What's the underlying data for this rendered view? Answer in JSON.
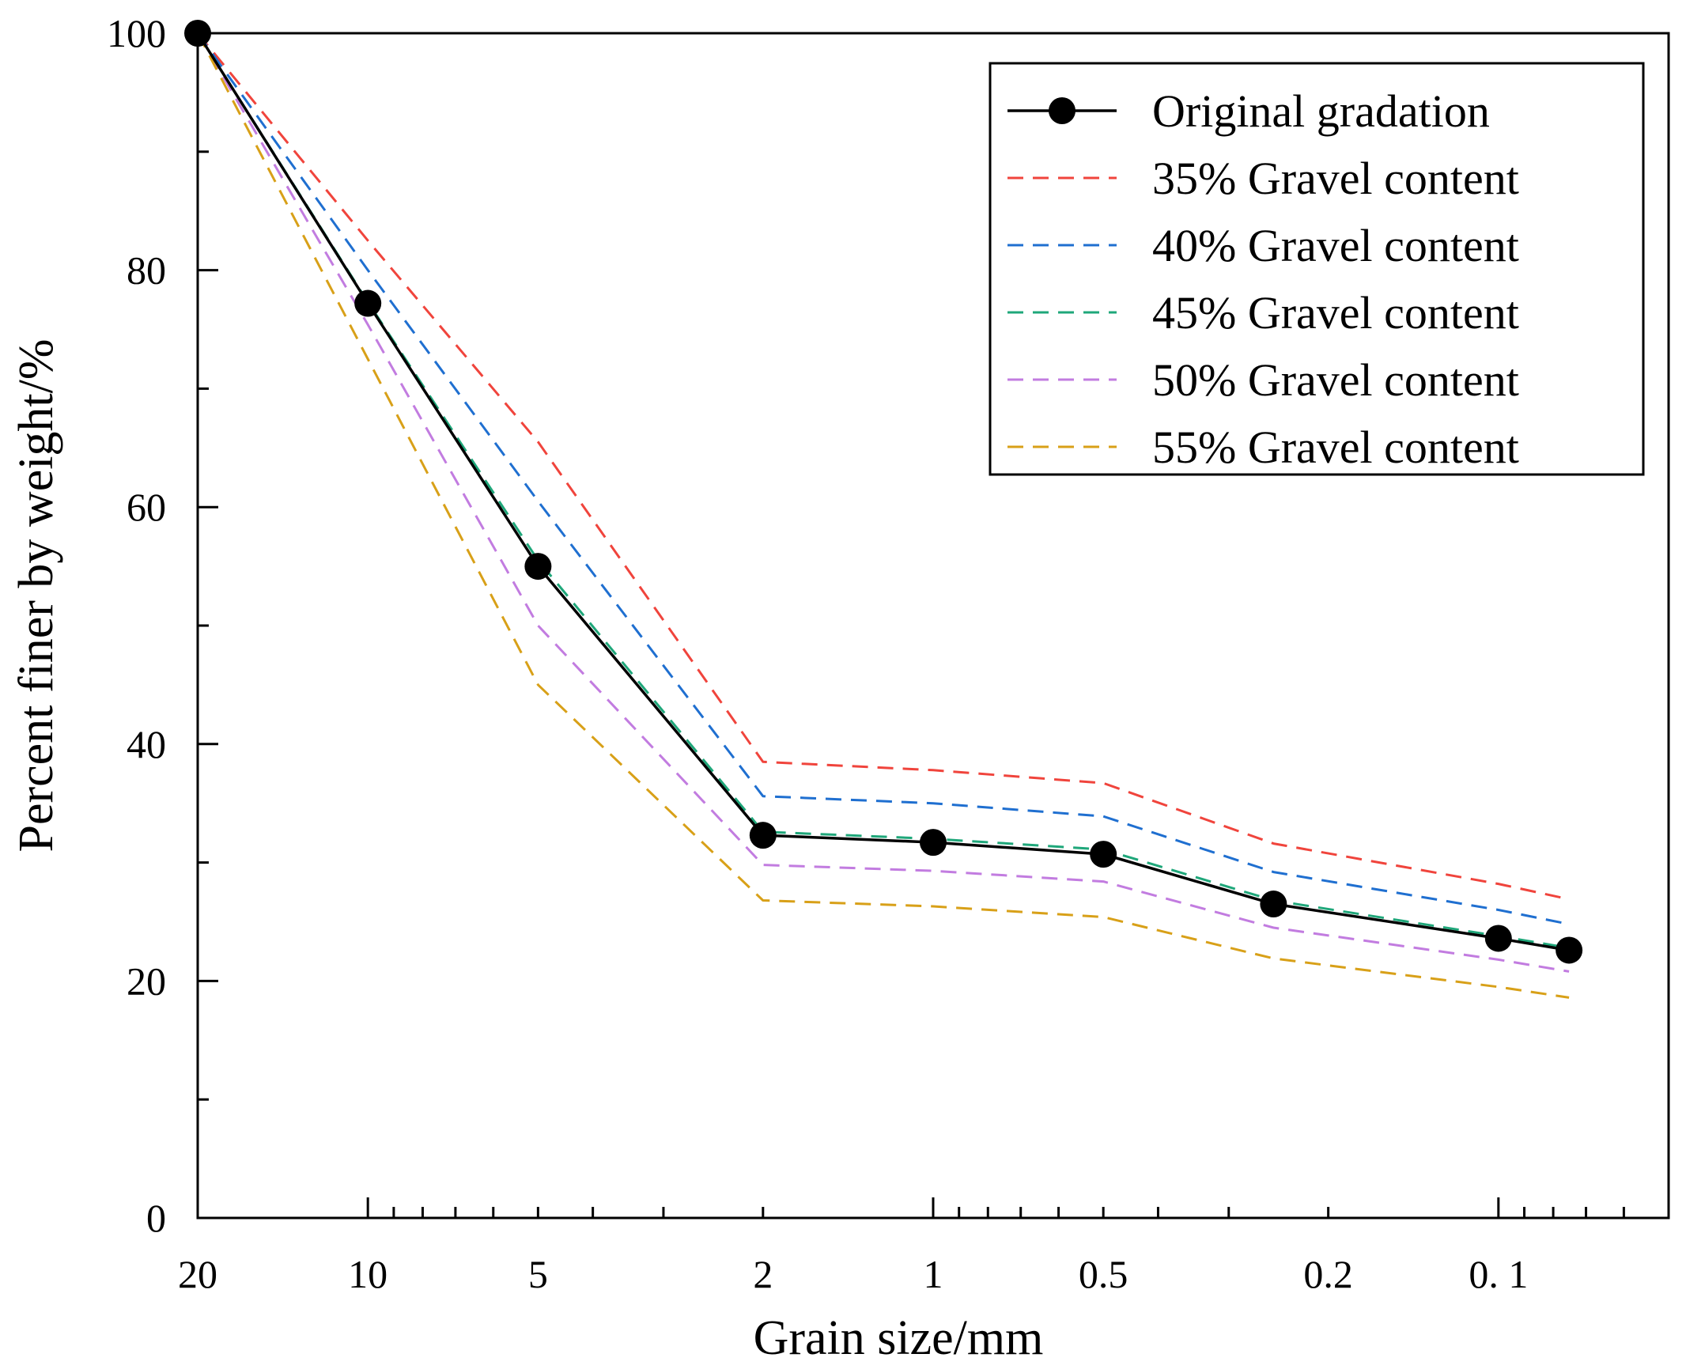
{
  "chart_data": {
    "type": "line",
    "xlabel": "Grain size/mm",
    "ylabel": "Percent finer by weight/%",
    "x_scale": "log",
    "x_reversed": true,
    "xlim": [
      20,
      0.05
    ],
    "ylim": [
      0,
      100
    ],
    "x_ticks": [
      {
        "value": 20,
        "label": "20"
      },
      {
        "value": 10,
        "label": "10"
      },
      {
        "value": 5,
        "label": "5"
      },
      {
        "value": 2,
        "label": "2"
      },
      {
        "value": 1,
        "label": "1"
      },
      {
        "value": 0.5,
        "label": "0.5"
      },
      {
        "value": 0.2,
        "label": "0.2"
      },
      {
        "value": 0.1,
        "label": "0. 1"
      }
    ],
    "y_ticks": [
      {
        "value": 0,
        "label": "0"
      },
      {
        "value": 20,
        "label": "20"
      },
      {
        "value": 40,
        "label": "40"
      },
      {
        "value": 60,
        "label": "60"
      },
      {
        "value": 80,
        "label": "80"
      },
      {
        "value": 100,
        "label": "100"
      }
    ],
    "x": [
      20,
      10,
      5,
      2,
      1,
      0.5,
      0.25,
      0.1,
      0.075
    ],
    "series": [
      {
        "name": "Original gradation",
        "color": "#000000",
        "dashed": false,
        "markers": true,
        "values": [
          100,
          77.2,
          55,
          32.3,
          31.7,
          30.7,
          26.5,
          23.6,
          22.6
        ]
      },
      {
        "name": "35% Gravel content",
        "color": "#f0443c",
        "dashed": true,
        "markers": false,
        "values": [
          100,
          82.5,
          65.5,
          38.5,
          37.8,
          36.7,
          31.6,
          28.2,
          26.9
        ]
      },
      {
        "name": "40% Gravel content",
        "color": "#1f6fd0",
        "dashed": true,
        "markers": false,
        "values": [
          100,
          80,
          60.5,
          35.6,
          35,
          33.9,
          29.2,
          26,
          24.8
        ]
      },
      {
        "name": "45% Gravel content",
        "color": "#1fa77a",
        "dashed": true,
        "markers": false,
        "values": [
          100,
          77.3,
          55.5,
          32.6,
          32,
          31.1,
          26.8,
          23.8,
          22.8
        ]
      },
      {
        "name": "50% Gravel content",
        "color": "#c27ce0",
        "dashed": true,
        "markers": false,
        "values": [
          100,
          75.4,
          50,
          29.8,
          29.3,
          28.4,
          24.5,
          21.8,
          20.8
        ]
      },
      {
        "name": "55% Gravel content",
        "color": "#d8a018",
        "dashed": true,
        "markers": false,
        "values": [
          100,
          72.5,
          45,
          26.8,
          26.3,
          25.4,
          21.9,
          19.5,
          18.6
        ]
      }
    ]
  }
}
